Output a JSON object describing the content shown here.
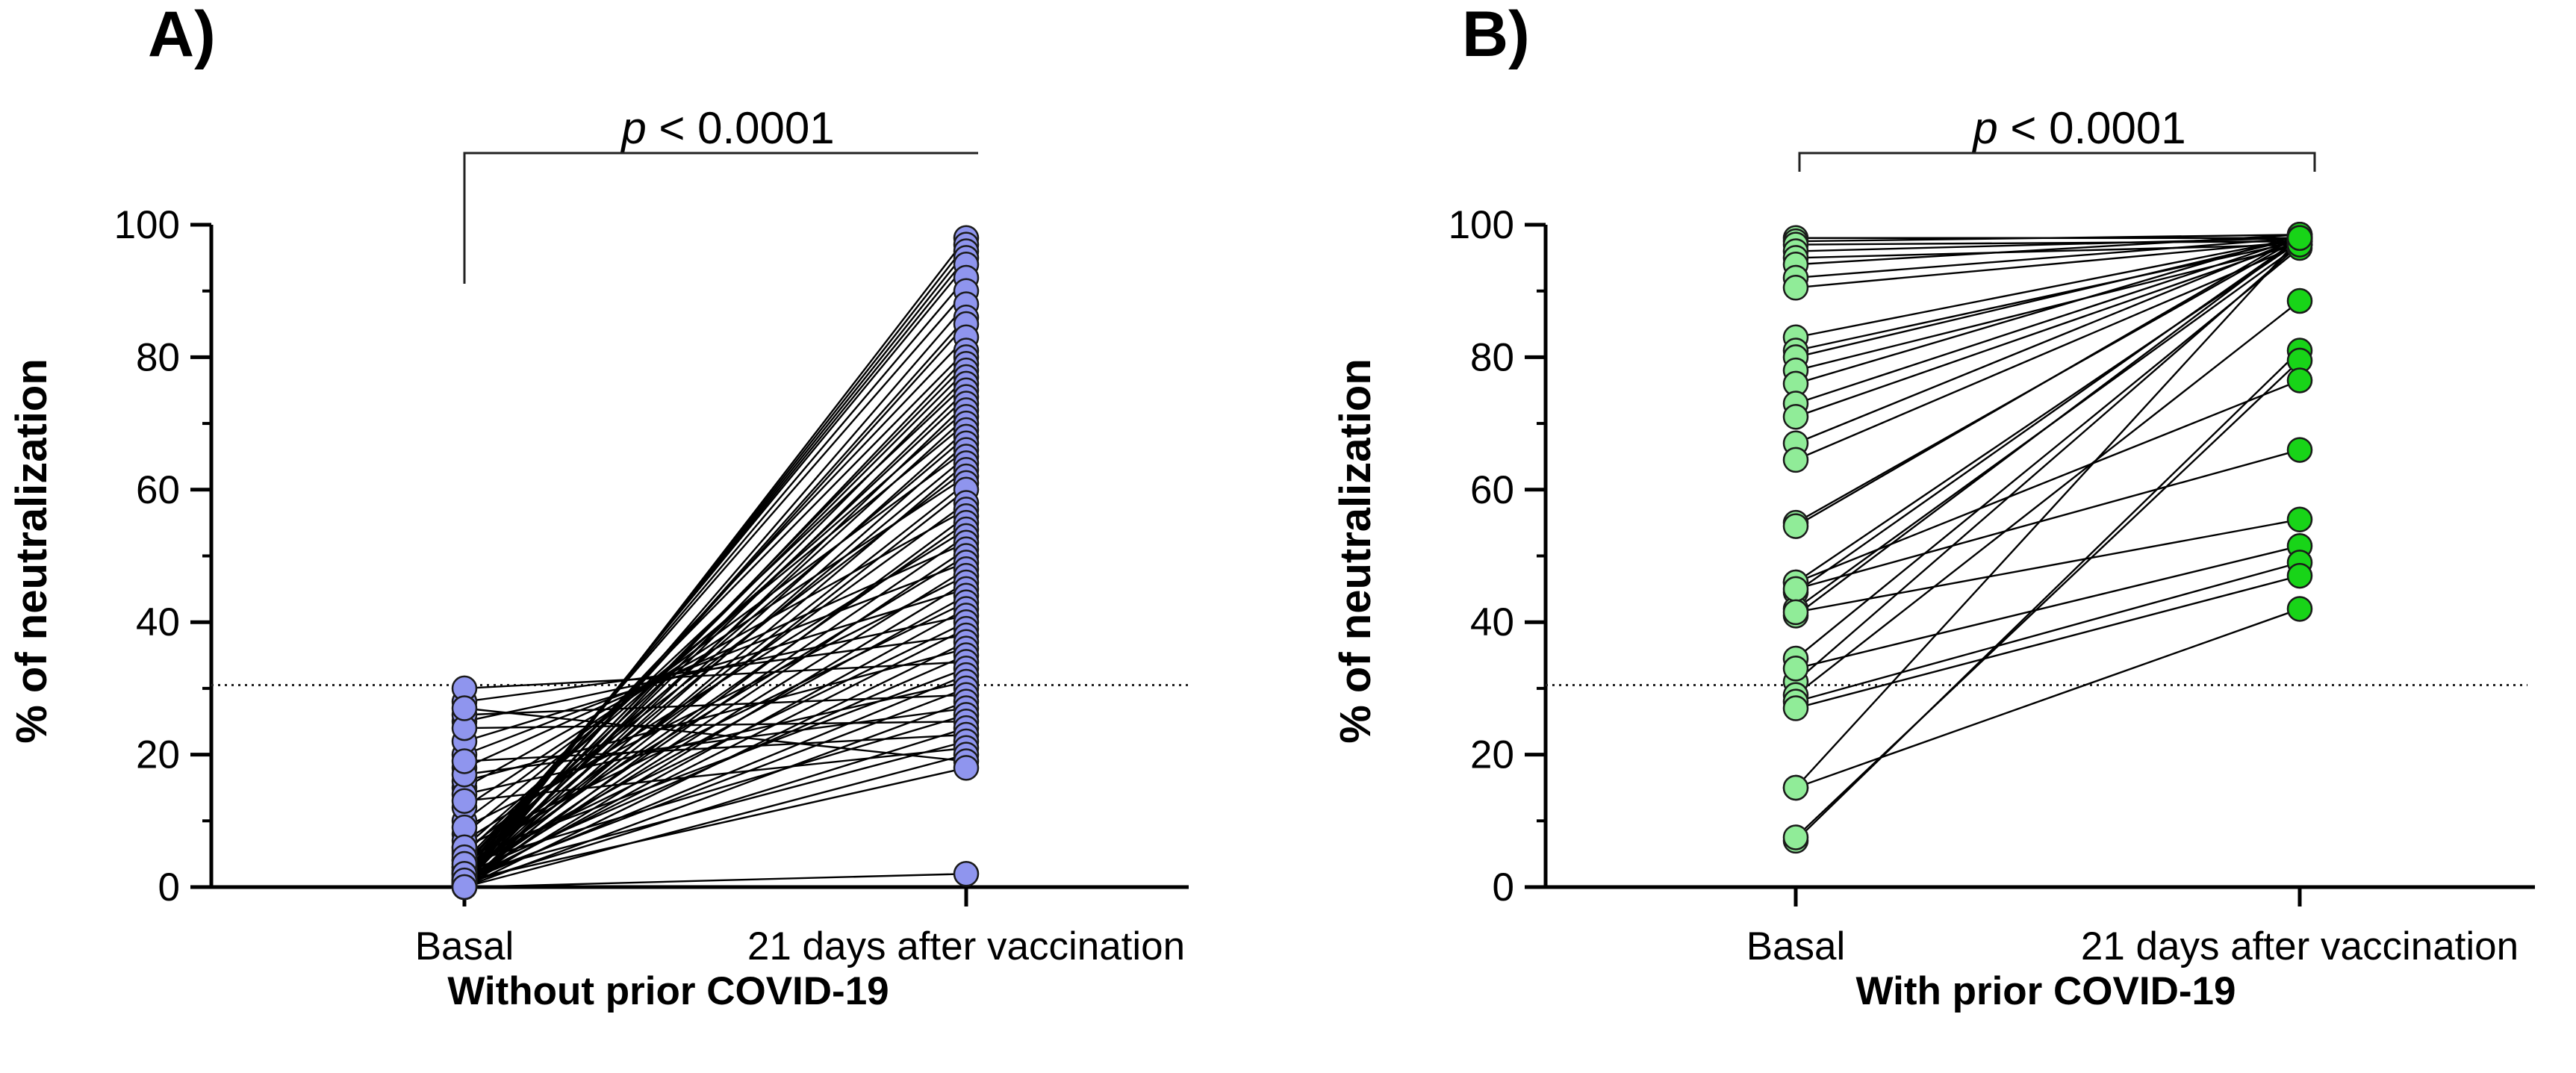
{
  "chart_data": [
    {
      "panel": "A)",
      "type": "scatter",
      "subtype": "paired before-after",
      "title": "Without prior COVID-19",
      "xlabel": "Without prior COVID-19",
      "ylabel": "% of neutralization",
      "categories": [
        "Basal",
        "21 days after vaccination"
      ],
      "ylim": [
        0,
        100
      ],
      "yticks": [
        0,
        20,
        40,
        60,
        80,
        100
      ],
      "threshold": 30.5,
      "significance": {
        "p": "p",
        "rest": " < 0.0001"
      },
      "marker_color": "#8f95ee",
      "pairs": [
        [
          0.0,
          98.0
        ],
        [
          0.5,
          97.0
        ],
        [
          1.0,
          96.0
        ],
        [
          1.5,
          95.0
        ],
        [
          2.0,
          94.0
        ],
        [
          2.5,
          92.0
        ],
        [
          3.0,
          90.0
        ],
        [
          0.2,
          88.0
        ],
        [
          0.8,
          86.0
        ],
        [
          1.2,
          85.0
        ],
        [
          3.5,
          83.0
        ],
        [
          4.0,
          81.0
        ],
        [
          0.4,
          80.0
        ],
        [
          1.8,
          79.0
        ],
        [
          2.2,
          78.0
        ],
        [
          0.6,
          77.0
        ],
        [
          5.0,
          76.0
        ],
        [
          1.0,
          75.0
        ],
        [
          3.0,
          74.0
        ],
        [
          0.0,
          73.0
        ],
        [
          6.0,
          72.0
        ],
        [
          2.0,
          71.0
        ],
        [
          8.0,
          70.0
        ],
        [
          1.0,
          69.0
        ],
        [
          4.0,
          68.0
        ],
        [
          0.3,
          67.0
        ],
        [
          10.0,
          66.0
        ],
        [
          2.5,
          65.0
        ],
        [
          0.0,
          64.0
        ],
        [
          5.5,
          63.0
        ],
        [
          12.0,
          62.0
        ],
        [
          1.5,
          61.0
        ],
        [
          0.7,
          60.0
        ],
        [
          3.0,
          58.0
        ],
        [
          15.0,
          57.0
        ],
        [
          0.0,
          56.0
        ],
        [
          2.0,
          55.0
        ],
        [
          7.0,
          54.0
        ],
        [
          1.0,
          53.0
        ],
        [
          18.0,
          52.0
        ],
        [
          0.5,
          51.0
        ],
        [
          4.0,
          50.0
        ],
        [
          20.0,
          49.0
        ],
        [
          1.0,
          48.0
        ],
        [
          9.0,
          47.0
        ],
        [
          0.0,
          46.0
        ],
        [
          22.0,
          45.0
        ],
        [
          2.5,
          44.0
        ],
        [
          6.0,
          43.0
        ],
        [
          0.5,
          42.0
        ],
        [
          25.0,
          41.0
        ],
        [
          3.0,
          40.0
        ],
        [
          1.0,
          39.0
        ],
        [
          28.0,
          38.0
        ],
        [
          0.0,
          37.0
        ],
        [
          16.0,
          36.0
        ],
        [
          2.0,
          35.0
        ],
        [
          30.0,
          34.0
        ],
        [
          4.5,
          33.0
        ],
        [
          0.8,
          32.0
        ],
        [
          14.0,
          31.0
        ],
        [
          1.2,
          30.0
        ],
        [
          26.0,
          29.0
        ],
        [
          0.0,
          28.0
        ],
        [
          17.0,
          27.0
        ],
        [
          3.5,
          26.0
        ],
        [
          24.0,
          25.0
        ],
        [
          0.5,
          24.0
        ],
        [
          19.0,
          23.0
        ],
        [
          2.0,
          22.0
        ],
        [
          13.0,
          21.0
        ],
        [
          0.0,
          20.0
        ],
        [
          27.0,
          19.0
        ],
        [
          1.0,
          18.0
        ],
        [
          0.0,
          2.0
        ]
      ]
    },
    {
      "panel": "B)",
      "type": "scatter",
      "subtype": "paired before-after",
      "title": "With prior COVID-19",
      "xlabel": "With prior COVID-19",
      "ylabel": "% of neutralization",
      "categories": [
        "Basal",
        "21 days after vaccination"
      ],
      "ylim": [
        0,
        100
      ],
      "yticks": [
        0,
        20,
        40,
        60,
        80,
        100
      ],
      "threshold": 30.5,
      "significance": {
        "p": "p",
        "rest": " < 0.0001"
      },
      "marker_color_basal": "#90ec98",
      "marker_color_after": "#18d418",
      "pairs": [
        [
          98.0,
          98.0
        ],
        [
          97.5,
          98.5
        ],
        [
          97.0,
          97.5
        ],
        [
          96.0,
          98.0
        ],
        [
          95.0,
          97.0
        ],
        [
          94.0,
          98.5
        ],
        [
          92.0,
          98.0
        ],
        [
          90.5,
          97.5
        ],
        [
          83.0,
          98.0
        ],
        [
          81.0,
          97.5
        ],
        [
          80.0,
          98.0
        ],
        [
          78.0,
          97.0
        ],
        [
          76.0,
          98.5
        ],
        [
          73.0,
          98.0
        ],
        [
          71.0,
          97.5
        ],
        [
          67.0,
          98.0
        ],
        [
          64.5,
          97.0
        ],
        [
          55.0,
          98.0
        ],
        [
          54.5,
          98.5
        ],
        [
          46.0,
          97.5
        ],
        [
          44.5,
          98.0
        ],
        [
          42.0,
          97.0
        ],
        [
          41.0,
          98.0
        ],
        [
          34.5,
          96.5
        ],
        [
          31.0,
          97.0
        ],
        [
          29.0,
          88.5
        ],
        [
          15.0,
          98.0
        ],
        [
          7.0,
          81.0
        ],
        [
          7.5,
          79.5
        ],
        [
          46.0,
          76.5
        ],
        [
          45.0,
          66.0
        ],
        [
          41.5,
          55.5
        ],
        [
          33.0,
          51.5
        ],
        [
          28.0,
          49.0
        ],
        [
          27.0,
          47.0
        ],
        [
          15.0,
          42.0
        ]
      ]
    }
  ]
}
